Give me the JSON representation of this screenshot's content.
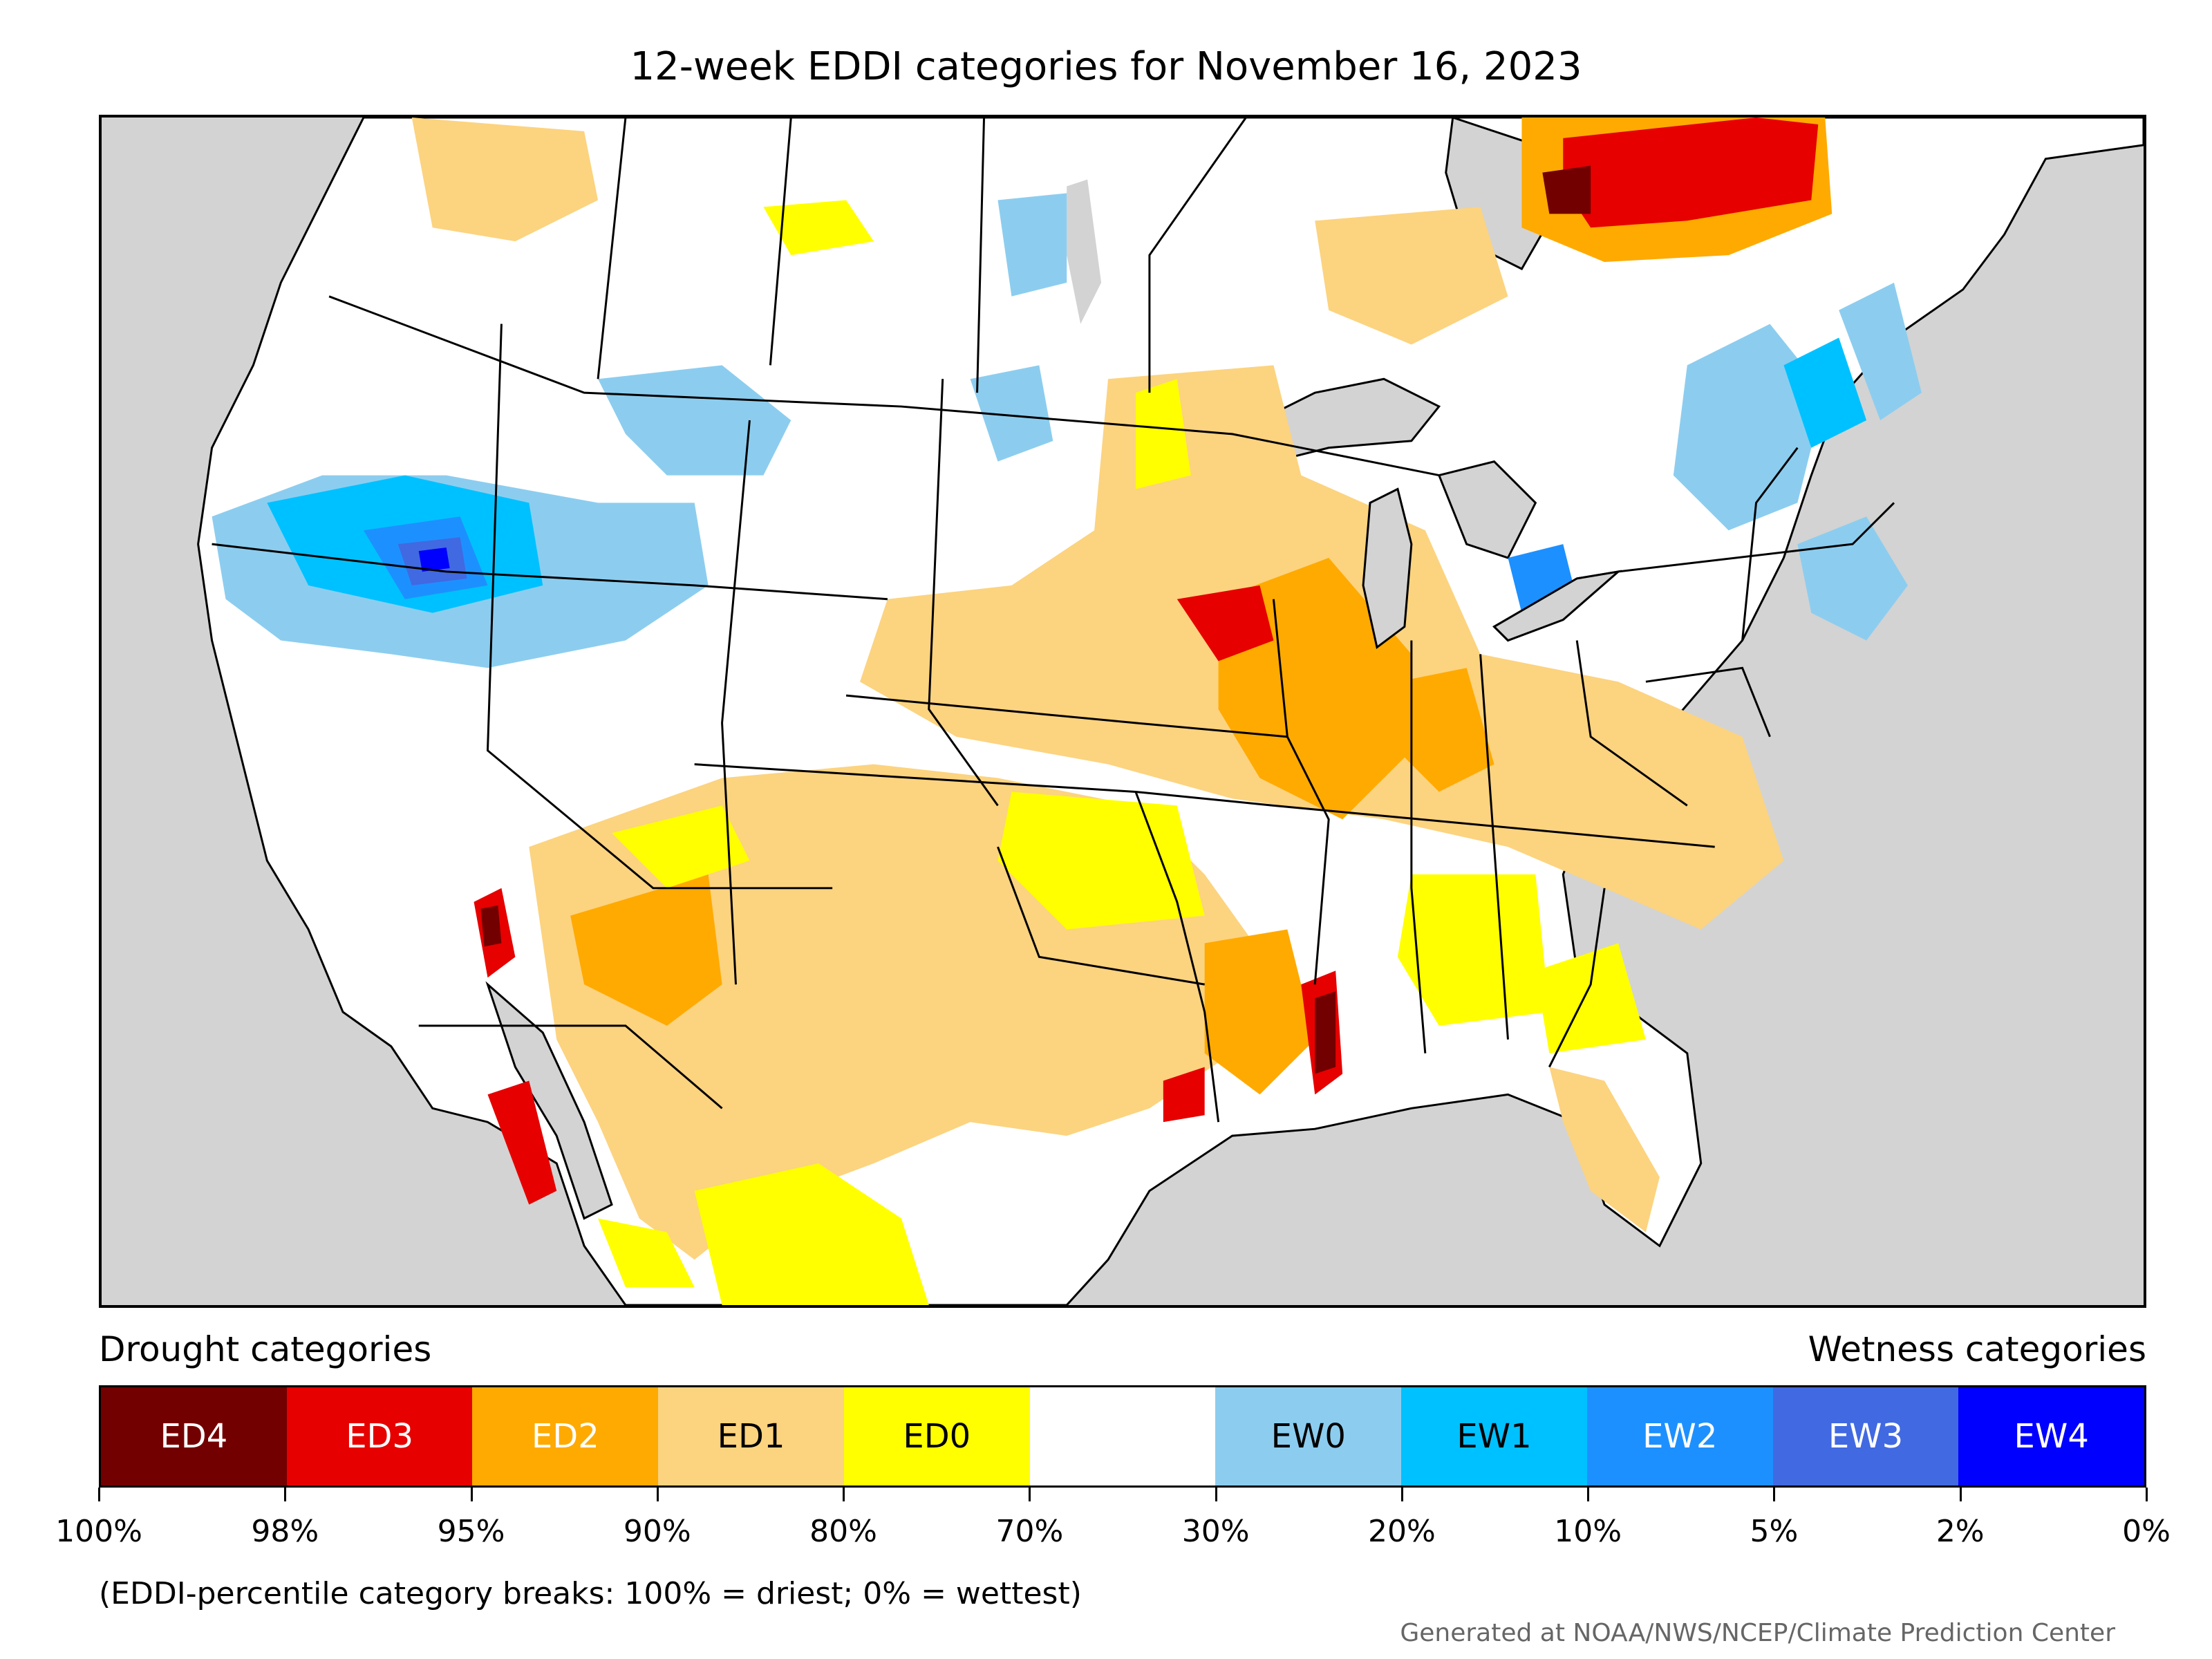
{
  "title": "12-week EDDI categories for November 16, 2023",
  "legend": {
    "drought_label": "Drought categories",
    "wetness_label": "Wetness categories",
    "categories": [
      {
        "label": "ED4",
        "color": "#730000",
        "text_color": "#ffffff"
      },
      {
        "label": "ED3",
        "color": "#e60000",
        "text_color": "#ffffff"
      },
      {
        "label": "ED2",
        "color": "#ffaa00",
        "text_color": "#ffffff"
      },
      {
        "label": "ED1",
        "color": "#fcd37f",
        "text_color": "#000000"
      },
      {
        "label": "ED0",
        "color": "#ffff00",
        "text_color": "#000000"
      },
      {
        "label": "",
        "color": "#ffffff",
        "text_color": "#000000"
      },
      {
        "label": "EW0",
        "color": "#8ccdef",
        "text_color": "#000000"
      },
      {
        "label": "EW1",
        "color": "#00c1ff",
        "text_color": "#000000"
      },
      {
        "label": "EW2",
        "color": "#1d90ff",
        "text_color": "#ffffff"
      },
      {
        "label": "EW3",
        "color": "#4169e1",
        "text_color": "#ffffff"
      },
      {
        "label": "EW4",
        "color": "#0000ff",
        "text_color": "#ffffff"
      }
    ],
    "tick_labels": [
      "100%",
      "98%",
      "95%",
      "90%",
      "80%",
      "70%",
      "30%",
      "20%",
      "10%",
      "5%",
      "2%",
      "0%"
    ]
  },
  "note": "(EDDI-percentile category breaks: 100% = driest; 0% = wettest)",
  "credit": "Generated at NOAA/NWS/NCEP/Climate Prediction Center",
  "colors": {
    "ocean": "#d3d3d3",
    "land": "#ffffff",
    "border": "#000000"
  }
}
